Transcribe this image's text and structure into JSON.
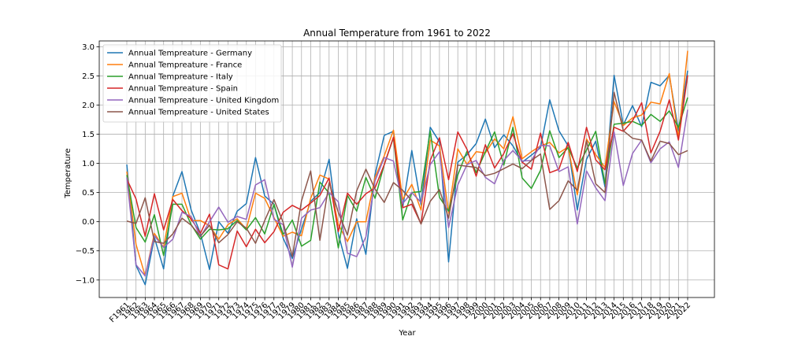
{
  "chart_data": {
    "type": "line",
    "title": "Annual Temperature from 1961 to 2022",
    "xlabel": "Year",
    "ylabel": "Temperature",
    "ylim": [
      -1.3,
      3.1
    ],
    "yticks": [
      -1.0,
      -0.5,
      0.0,
      0.5,
      1.0,
      1.5,
      2.0,
      2.5,
      3.0
    ],
    "ytick_labels": [
      "−1.0",
      "−0.5",
      "0.0",
      "0.5",
      "1.0",
      "1.5",
      "2.0",
      "2.5",
      "3.0"
    ],
    "grid": true,
    "legend_position": "top-left",
    "categories": [
      "F1961",
      "1962",
      "1963",
      "1964",
      "1965",
      "1966",
      "1967",
      "1968",
      "1969",
      "1970",
      "1971",
      "1972",
      "1973",
      "1974",
      "1975",
      "1976",
      "1977",
      "1978",
      "1979",
      "1980",
      "1981",
      "1982",
      "1983",
      "1984",
      "1985",
      "1986",
      "1987",
      "1988",
      "1989",
      "1990",
      "1991",
      "1992",
      "1993",
      "1994",
      "1995",
      "1996",
      "1997",
      "1998",
      "1999",
      "2000",
      "2001",
      "2002",
      "2003",
      "2004",
      "2005",
      "2006",
      "2007",
      "2008",
      "2009",
      "2010",
      "2011",
      "2012",
      "2013",
      "2014",
      "2015",
      "2016",
      "2017",
      "2018",
      "2019",
      "2020",
      "2021",
      "2022"
    ],
    "series": [
      {
        "name": "Annual Tempreature - Germany",
        "color": "#1f77b4",
        "values": [
          0.98,
          -0.75,
          -1.08,
          -0.27,
          -0.81,
          0.44,
          0.86,
          0.2,
          -0.2,
          -0.82,
          0.0,
          -0.2,
          0.18,
          0.31,
          1.1,
          0.44,
          0.3,
          -0.28,
          -0.63,
          -0.12,
          0.35,
          0.5,
          1.07,
          -0.21,
          -0.8,
          0.05,
          -0.56,
          0.81,
          1.48,
          1.55,
          0.24,
          1.22,
          0.29,
          1.62,
          1.37,
          -0.69,
          1.02,
          1.15,
          1.34,
          1.76,
          1.27,
          1.49,
          1.3,
          1.02,
          1.14,
          1.27,
          2.09,
          1.56,
          1.3,
          0.2,
          1.07,
          1.38,
          0.6,
          2.51,
          1.66,
          1.99,
          1.63,
          2.39,
          2.33,
          2.51,
          1.56,
          2.59
        ]
      },
      {
        "name": "Annual Tempreature - France",
        "color": "#ff7f0e",
        "values": [
          0.86,
          -0.39,
          -0.93,
          -0.2,
          -0.44,
          0.43,
          0.49,
          0.02,
          0.02,
          -0.07,
          -0.3,
          -0.05,
          0.05,
          -0.13,
          0.49,
          0.4,
          0.07,
          -0.25,
          -0.18,
          -0.24,
          0.4,
          0.8,
          0.73,
          -0.05,
          -0.34,
          0.0,
          0.0,
          0.76,
          1.13,
          1.57,
          0.38,
          0.64,
          0.2,
          1.4,
          1.3,
          0.15,
          1.25,
          0.98,
          1.2,
          1.18,
          1.42,
          1.25,
          1.8,
          1.08,
          1.2,
          1.3,
          1.36,
          1.18,
          1.28,
          0.46,
          1.42,
          1.15,
          0.93,
          2.06,
          1.65,
          1.78,
          1.83,
          2.05,
          2.02,
          2.54,
          1.44,
          2.93
        ]
      },
      {
        "name": "Annual Tempreature - Italy",
        "color": "#2ca02c",
        "values": [
          0.8,
          -0.1,
          -0.35,
          0.12,
          -0.58,
          0.3,
          0.3,
          -0.05,
          -0.3,
          -0.13,
          -0.14,
          -0.12,
          0.02,
          -0.14,
          0.07,
          -0.21,
          0.3,
          -0.22,
          0.03,
          -0.42,
          -0.32,
          0.68,
          0.49,
          -0.45,
          0.45,
          0.18,
          0.76,
          0.4,
          0.98,
          1.44,
          0.03,
          0.5,
          0.52,
          1.56,
          0.42,
          0.18,
          0.8,
          1.21,
          0.84,
          1.2,
          1.54,
          0.97,
          1.62,
          0.75,
          0.57,
          0.88,
          1.56,
          1.1,
          1.27,
          0.92,
          1.23,
          1.55,
          0.65,
          1.67,
          1.69,
          1.72,
          1.65,
          1.84,
          1.72,
          1.9,
          1.62,
          2.13
        ]
      },
      {
        "name": "Annual Tempreature - Spain",
        "color": "#d62728",
        "values": [
          0.73,
          0.39,
          -0.25,
          0.48,
          -0.14,
          0.38,
          0.19,
          0.05,
          -0.2,
          0.13,
          -0.74,
          -0.81,
          -0.16,
          -0.43,
          -0.13,
          -0.36,
          -0.17,
          0.16,
          0.28,
          0.2,
          0.32,
          0.45,
          0.75,
          -0.17,
          0.49,
          0.3,
          0.48,
          0.58,
          0.98,
          1.45,
          0.24,
          0.3,
          -0.04,
          1.05,
          1.44,
          0.72,
          1.54,
          1.24,
          0.78,
          1.32,
          0.92,
          1.17,
          1.51,
          1.02,
          0.9,
          1.52,
          0.84,
          0.9,
          1.36,
          0.86,
          1.62,
          1.06,
          0.89,
          1.62,
          1.55,
          1.73,
          2.04,
          1.18,
          1.55,
          2.09,
          1.4,
          2.51
        ]
      },
      {
        "name": "Annual Tempreature - United Kingdom",
        "color": "#9467bd",
        "values": [
          0.76,
          -0.74,
          -0.93,
          -0.24,
          -0.44,
          -0.3,
          0.16,
          0.09,
          -0.26,
          0.0,
          0.25,
          -0.01,
          0.09,
          0.04,
          0.63,
          0.72,
          0.04,
          -0.05,
          -0.78,
          0.06,
          0.2,
          0.24,
          0.5,
          0.34,
          -0.54,
          -0.6,
          -0.26,
          0.7,
          1.1,
          1.04,
          0.31,
          0.5,
          0.33,
          0.98,
          1.2,
          -0.1,
          0.63,
          0.98,
          1.05,
          0.76,
          0.65,
          1.05,
          1.22,
          1.04,
          1.05,
          1.31,
          1.3,
          0.86,
          0.94,
          -0.04,
          0.87,
          0.58,
          0.36,
          1.54,
          0.62,
          1.17,
          1.4,
          1.01,
          1.25,
          1.37,
          0.93,
          1.92
        ]
      },
      {
        "name": "Annual Tempreature - United States",
        "color": "#8c564b",
        "values": [
          0.01,
          -0.03,
          0.41,
          -0.34,
          -0.37,
          -0.21,
          0.06,
          -0.06,
          -0.25,
          -0.06,
          -0.36,
          -0.22,
          0.0,
          -0.11,
          -0.37,
          0.02,
          0.38,
          -0.01,
          -0.6,
          0.36,
          0.87,
          -0.32,
          0.67,
          0.16,
          -0.23,
          0.53,
          0.9,
          0.56,
          0.33,
          0.67,
          0.54,
          0.36,
          -0.04,
          0.35,
          0.55,
          0.06,
          0.97,
          0.95,
          0.93,
          0.79,
          0.83,
          0.91,
          0.99,
          0.91,
          1.05,
          1.16,
          0.21,
          0.36,
          0.7,
          0.54,
          1.39,
          0.65,
          0.5,
          2.22,
          1.56,
          1.43,
          1.4,
          1.04,
          1.38,
          1.34,
          1.15,
          1.22
        ]
      }
    ]
  }
}
